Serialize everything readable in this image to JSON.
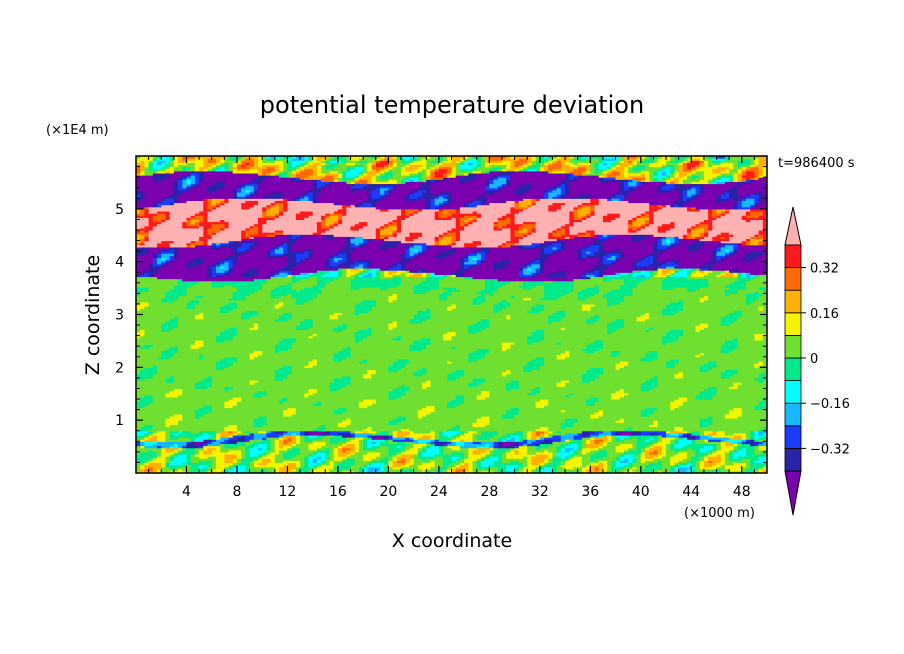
{
  "chart_data": {
    "type": "heatmap",
    "title": "potential temperature deviation",
    "time_label": "t=986400 s",
    "xlabel": "X coordinate",
    "ylabel": "Z coordinate",
    "x_unit": "(×1000 m)",
    "y_unit": "(×1E4 m)",
    "xlim": [
      0,
      50
    ],
    "ylim": [
      0,
      6
    ],
    "x_ticks": [
      4,
      8,
      12,
      16,
      20,
      24,
      28,
      32,
      36,
      40,
      44,
      48
    ],
    "y_ticks": [
      1,
      2,
      3,
      4,
      5
    ],
    "grid": false,
    "colorbar": {
      "position": "right",
      "levels": [
        -0.4,
        -0.32,
        -0.24,
        -0.16,
        -0.08,
        0,
        0.08,
        0.16,
        0.24,
        0.32,
        0.4
      ],
      "tick_labels": [
        "0.32",
        "0.16",
        "0",
        "−0.16",
        "−0.32"
      ],
      "tick_values": [
        0.32,
        0.16,
        0,
        -0.16,
        -0.32
      ],
      "colors": [
        "#7a00b0",
        "#2a22a8",
        "#1a3cff",
        "#18b8ff",
        "#00ffff",
        "#00e98a",
        "#6fe030",
        "#f4f400",
        "#ffb000",
        "#ff6a00",
        "#ff1a1a",
        "#ffb0b0"
      ],
      "extend": "both"
    },
    "bands": [
      {
        "z": [
          0.0,
          0.6
        ],
        "value": 0.04
      },
      {
        "z": [
          0.6,
          0.7
        ],
        "value": -0.28
      },
      {
        "z": [
          0.7,
          1.5
        ],
        "value": 0.04
      },
      {
        "z": [
          1.5,
          3.4
        ],
        "value": 0.03
      },
      {
        "z": [
          3.4,
          3.75
        ],
        "value": 0.0
      },
      {
        "z": [
          3.75,
          4.4
        ],
        "value": -0.44
      },
      {
        "z": [
          4.4,
          5.1
        ],
        "value": 0.45
      },
      {
        "z": [
          5.1,
          5.6
        ],
        "value": -0.44
      },
      {
        "z": [
          5.6,
          6.0
        ],
        "value": 0.1
      }
    ]
  }
}
